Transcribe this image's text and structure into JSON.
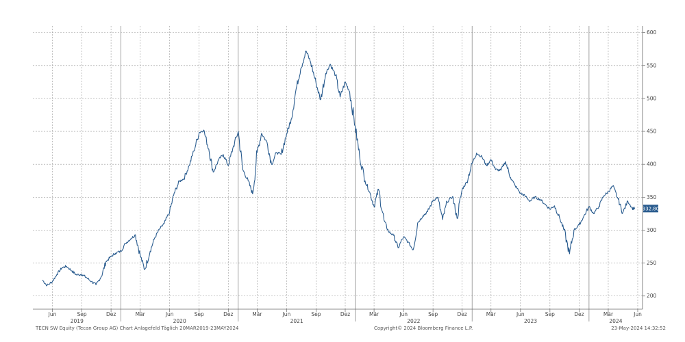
{
  "chart_data": {
    "type": "line",
    "title": "",
    "xlabel": "",
    "ylabel": "",
    "ylim": [
      180,
      610
    ],
    "y_ticks": [
      200,
      250,
      300,
      350,
      400,
      450,
      500,
      550,
      600
    ],
    "x_ticks": [
      "Jun",
      "Sep",
      "Dez",
      "Mär",
      "Jun",
      "Sep",
      "Dez",
      "Mär",
      "Jun",
      "Sep",
      "Dez",
      "Mär",
      "Jun",
      "Sep",
      "Dez",
      "Mär",
      "Jun",
      "Sep",
      "Dez",
      "Mär",
      "Jun"
    ],
    "year_labels": [
      "2019",
      "2020",
      "2021",
      "2022",
      "2023",
      "2024"
    ],
    "last_value_label": "332.80",
    "grid": true,
    "line_color": "#2a5c8f",
    "series": [
      {
        "x": [
          "2019-05-01",
          "2019-05-15",
          "2019-06-01",
          "2019-06-15",
          "2019-07-01",
          "2019-07-15",
          "2019-08-01",
          "2019-08-15",
          "2019-09-01",
          "2019-09-15",
          "2019-10-01",
          "2019-10-15",
          "2019-11-01",
          "2019-11-15",
          "2019-12-01",
          "2019-12-15",
          "2020-01-01",
          "2020-01-15",
          "2020-02-01",
          "2020-02-15",
          "2020-03-01",
          "2020-03-15",
          "2020-04-01",
          "2020-04-15",
          "2020-05-01",
          "2020-05-15",
          "2020-06-01",
          "2020-06-15",
          "2020-07-01",
          "2020-07-15",
          "2020-08-01",
          "2020-08-15",
          "2020-09-01",
          "2020-09-15",
          "2020-10-01",
          "2020-10-15",
          "2020-11-01",
          "2020-11-15",
          "2020-12-01",
          "2020-12-15",
          "2021-01-01",
          "2021-01-15",
          "2021-02-01",
          "2021-02-15",
          "2021-03-01",
          "2021-03-15",
          "2021-04-01",
          "2021-04-15",
          "2021-05-01",
          "2021-05-15",
          "2021-06-01",
          "2021-06-15",
          "2021-07-01",
          "2021-07-15",
          "2021-08-01",
          "2021-08-15",
          "2021-09-01",
          "2021-09-15",
          "2021-10-01",
          "2021-10-15",
          "2021-11-01",
          "2021-11-15",
          "2021-12-01",
          "2021-12-15",
          "2022-01-01",
          "2022-01-15",
          "2022-02-01",
          "2022-02-15",
          "2022-03-01",
          "2022-03-15",
          "2022-04-01",
          "2022-04-15",
          "2022-05-01",
          "2022-05-15",
          "2022-06-01",
          "2022-06-15",
          "2022-07-01",
          "2022-07-15",
          "2022-08-01",
          "2022-08-15",
          "2022-09-01",
          "2022-09-15",
          "2022-10-01",
          "2022-10-15",
          "2022-11-01",
          "2022-11-15",
          "2022-12-01",
          "2022-12-15",
          "2023-01-01",
          "2023-01-15",
          "2023-02-01",
          "2023-02-15",
          "2023-03-01",
          "2023-03-15",
          "2023-04-01",
          "2023-04-15",
          "2023-05-01",
          "2023-05-15",
          "2023-06-01",
          "2023-06-15",
          "2023-07-01",
          "2023-07-15",
          "2023-08-01",
          "2023-08-15",
          "2023-09-01",
          "2023-09-15",
          "2023-10-01",
          "2023-10-15",
          "2023-11-01",
          "2023-11-15",
          "2023-12-01",
          "2023-12-15",
          "2024-01-01",
          "2024-01-15",
          "2024-02-01",
          "2024-02-15",
          "2024-03-01",
          "2024-03-15",
          "2024-04-01",
          "2024-04-15",
          "2024-05-01",
          "2024-05-15",
          "2024-05-23"
        ],
        "values": [
          224,
          216,
          222,
          233,
          243,
          245,
          238,
          232,
          233,
          228,
          222,
          217,
          230,
          252,
          260,
          265,
          268,
          280,
          287,
          293,
          262,
          240,
          268,
          288,
          302,
          310,
          328,
          356,
          374,
          378,
          398,
          420,
          448,
          452,
          423,
          388,
          407,
          415,
          398,
          424,
          450,
          392,
          375,
          355,
          418,
          447,
          433,
          400,
          418,
          415,
          446,
          468,
          515,
          545,
          572,
          555,
          523,
          498,
          538,
          552,
          535,
          502,
          525,
          510,
          458,
          412,
          375,
          358,
          336,
          362,
          315,
          298,
          292,
          273,
          290,
          282,
          270,
          311,
          322,
          328,
          345,
          350,
          316,
          343,
          351,
          318,
          362,
          373,
          401,
          417,
          411,
          398,
          407,
          392,
          391,
          404,
          380,
          368,
          356,
          352,
          344,
          350,
          347,
          340,
          332,
          337,
          319,
          300,
          264,
          300,
          308,
          320,
          336,
          325,
          336,
          352,
          358,
          367,
          347,
          326,
          344,
          333,
          333
        ]
      }
    ]
  },
  "footer": {
    "left": "TECN SW Equity (Tecan Group AG) Chart Anlagefeld   Täglich 20MAR2019-23MAY2024",
    "center": "Copyright© 2024 Bloomberg Finance L.P.",
    "right": "23-May-2024 14:32:52"
  }
}
